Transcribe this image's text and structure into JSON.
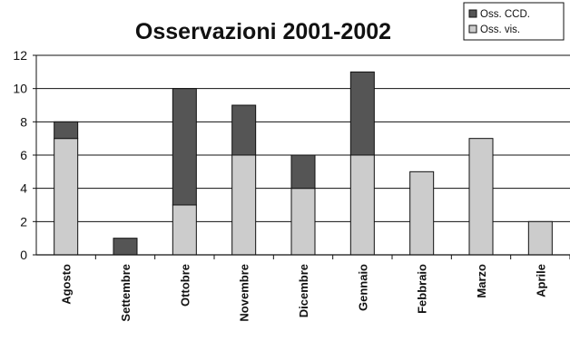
{
  "chart_data": {
    "type": "bar",
    "stacked": true,
    "title": "Osservazioni 2001-2002",
    "xlabel": "",
    "ylabel": "",
    "ylim": [
      0,
      12
    ],
    "yticks": [
      0,
      2,
      4,
      6,
      8,
      10,
      12
    ],
    "grid": true,
    "legend_position": "top-right",
    "categories": [
      "Agosto",
      "Settembre",
      "Ottobre",
      "Novembre",
      "Dicembre",
      "Gennaio",
      "Febbraio",
      "Marzo",
      "Aprile"
    ],
    "series": [
      {
        "name": "Oss. vis.",
        "color": "#cccccc",
        "values": [
          7,
          0,
          3,
          6,
          4,
          6,
          5,
          7,
          2
        ]
      },
      {
        "name": "Oss. CCD.",
        "color": "#555555",
        "values": [
          1,
          1,
          7,
          3,
          2,
          5,
          0,
          0,
          0
        ]
      }
    ],
    "legend_order": [
      "Oss. CCD.",
      "Oss. vis."
    ]
  }
}
